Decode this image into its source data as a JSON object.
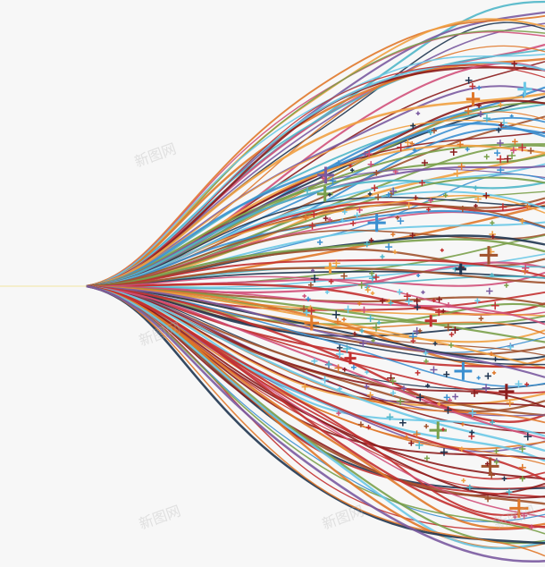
{
  "image": {
    "subject": "fan of colorful wavy lines spreading out from a single point, with scattered plus signs",
    "background_color": "#f7f7f7",
    "palette": [
      "#8b1c1c",
      "#e0782a",
      "#3a8fd0",
      "#4fb6c8",
      "#7a5aa0",
      "#1f3550",
      "#d0507a",
      "#7aa04a",
      "#6ac8e6",
      "#a0522d",
      "#c23030",
      "#f0a040"
    ],
    "watermark": "新图网"
  }
}
